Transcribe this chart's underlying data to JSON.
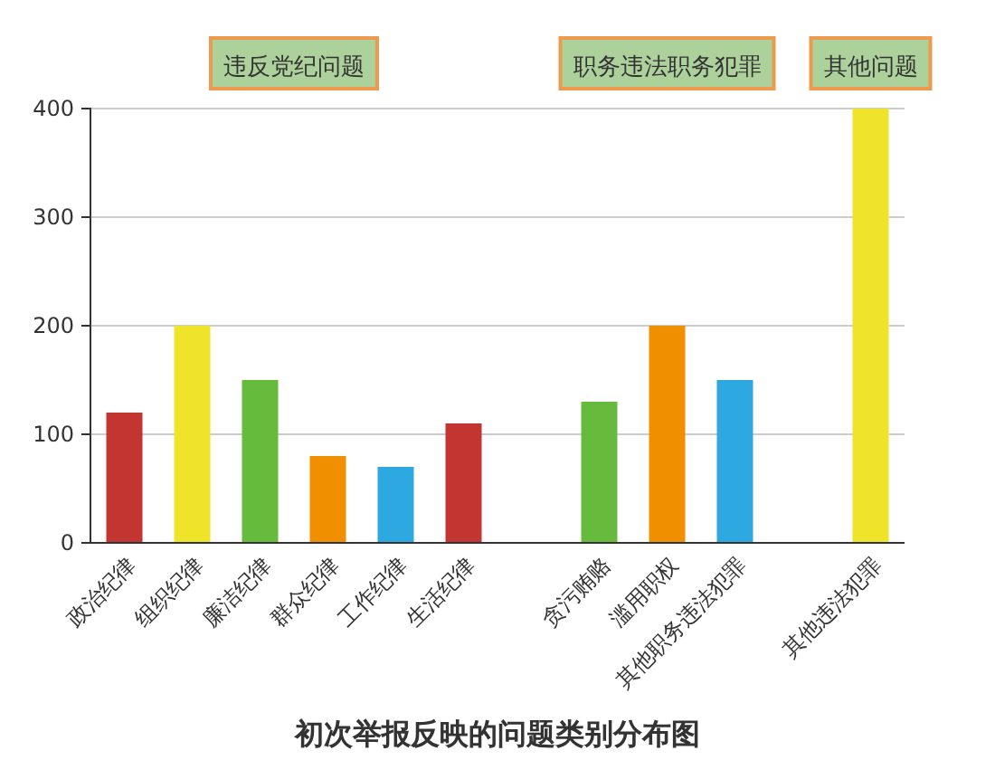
{
  "chart_data": {
    "type": "bar",
    "title": "初次举报反映的问题类别分布图",
    "categories": [
      "政治纪律",
      "组织纪律",
      "廉洁纪律",
      "群众纪律",
      "工作纪律",
      "生活纪律",
      null,
      "贪污贿赂",
      "滥用职权",
      "其他职务违法犯罪",
      null,
      "其他违法犯罪"
    ],
    "values": [
      120,
      200,
      150,
      80,
      70,
      110,
      null,
      130,
      200,
      150,
      null,
      400
    ],
    "colors": [
      "#c23531",
      "#f0e42a",
      "#66bb3c",
      "#f09000",
      "#2ea8e0",
      "#c23531",
      null,
      "#66bb3c",
      "#f09000",
      "#2ea8e0",
      null,
      "#f0e42a"
    ],
    "annotations": [
      "违反党纪问题",
      "职务违法职务犯罪",
      "其他问题"
    ],
    "ylim": [
      0,
      400
    ],
    "yticks": [
      0,
      100,
      200,
      300,
      400
    ],
    "grid": "y"
  }
}
